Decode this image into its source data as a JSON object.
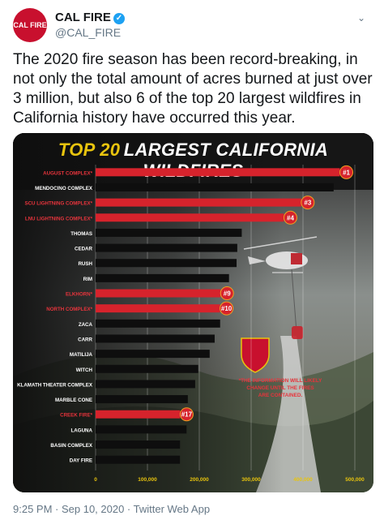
{
  "tweet": {
    "display_name": "CAL FIRE",
    "handle": "@CAL_FIRE",
    "avatar_label": "CAL FIRE",
    "text": "The 2020 fire season has been record-breaking, in not only the total amount of acres burned at just over 3 million, but also 6 of the top 20 largest wildfires in California history have occurred this year.",
    "footer": "9:25 PM · Sep 10, 2020 · Twitter Web App"
  },
  "infographic": {
    "title_part1": "TOP 20",
    "title_part2": "LARGEST CALIFORNIA WILDFIRES",
    "note": "*THE INFORMATION WILL LIKELY CHANGE UNTIL THE FIRES ARE CONTAINED.",
    "seal_label": "CAL FIRE"
  },
  "colors": {
    "red_bar": "#d6232c",
    "black_bar": "#0e0e0e",
    "title_yellow": "#e8c40e",
    "twitter_blue": "#1da1f2"
  },
  "chart_data": {
    "type": "bar",
    "orientation": "horizontal",
    "categories": [
      "AUGUST COMPLEX*",
      "MENDOCINO COMPLEX",
      "SCU LIGHTNING COMPLEX*",
      "LNU LIGHTNING COMPLEX*",
      "THOMAS",
      "CEDAR",
      "RUSH",
      "RIM",
      "ELKHORN*",
      "NORTH COMPLEX*",
      "ZACA",
      "CARR",
      "MATILIJA",
      "WITCH",
      "KLAMATH THEATER COMPLEX",
      "MARBLE CONE",
      "CREEK FIRE*",
      "LAGUNA",
      "BASIN COMPLEX",
      "DAY FIRE"
    ],
    "values": [
      471185,
      459123,
      396624,
      363220,
      281893,
      273246,
      271911,
      257314,
      241000,
      240000,
      240207,
      229651,
      220000,
      197990,
      192038,
      177866,
      163138,
      175425,
      162818,
      162702
    ],
    "highlight": [
      true,
      false,
      true,
      true,
      false,
      false,
      false,
      false,
      true,
      true,
      false,
      false,
      false,
      false,
      false,
      false,
      true,
      false,
      false,
      false
    ],
    "rank_badges": [
      "1",
      "",
      "3",
      "4",
      "",
      "",
      "",
      "",
      "9",
      "10",
      "",
      "",
      "",
      "",
      "",
      "",
      "17",
      "",
      "",
      ""
    ],
    "xlim": [
      0,
      500000
    ],
    "ticks": [
      "0",
      "100,000",
      "200,000",
      "300,000",
      "400,000",
      "500,000"
    ],
    "tick_values": [
      0,
      100000,
      200000,
      300000,
      400000,
      500000
    ],
    "grid": true
  }
}
